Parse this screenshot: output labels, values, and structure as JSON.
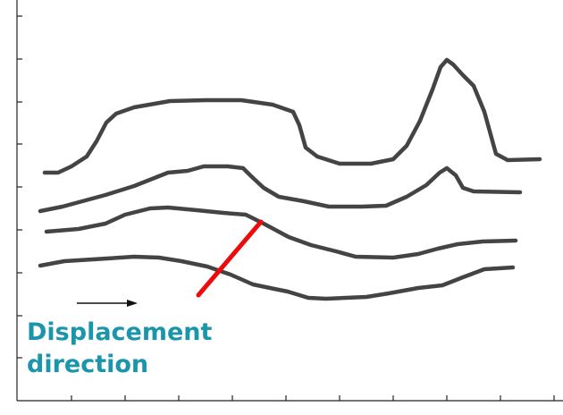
{
  "caption": {
    "line1": "Displacement",
    "line2": "direction"
  },
  "colors": {
    "profile_lines": "#444444",
    "fault_line": "#ee0a0a",
    "caption_text": "#1b95ac",
    "axis": "#222222",
    "arrow": "#111111"
  },
  "elements": {
    "profiles": [
      "profile-line-1",
      "profile-line-2",
      "profile-line-3",
      "profile-line-4"
    ],
    "fault": "fault-line",
    "arrow": "displacement-arrow"
  }
}
